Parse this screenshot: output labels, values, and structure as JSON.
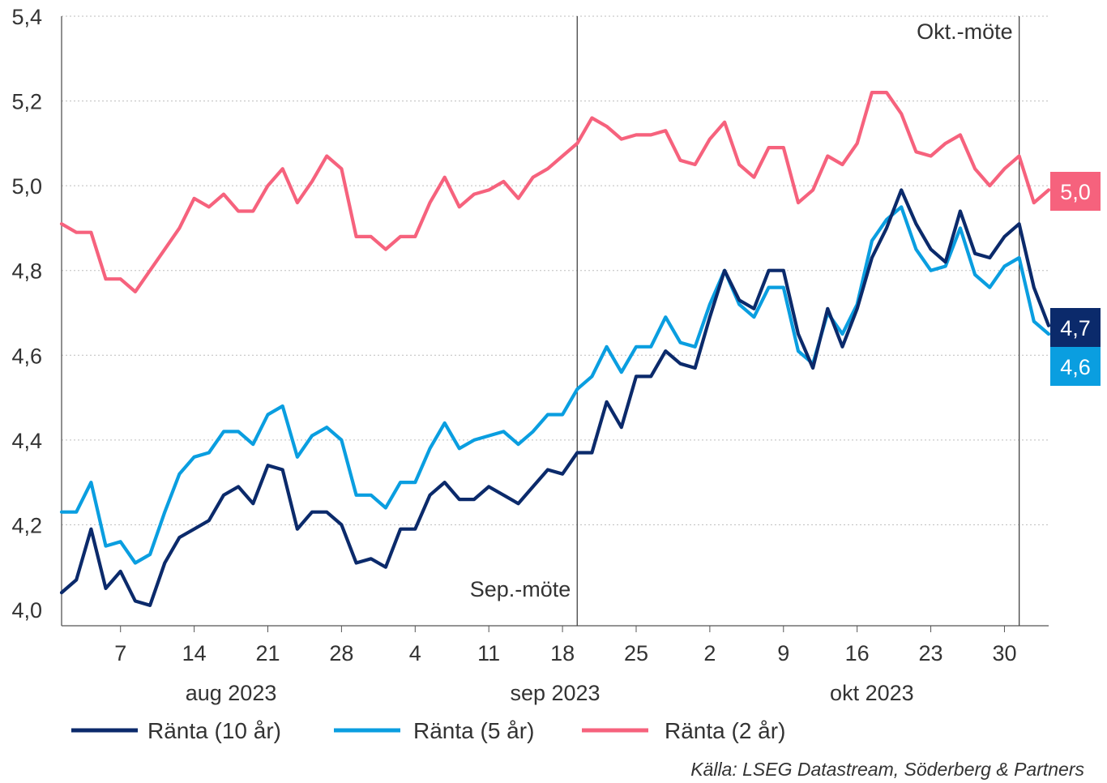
{
  "chart_data": {
    "type": "line",
    "title": "",
    "xlabel": "",
    "ylabel": "",
    "ylim": [
      4.0,
      5.4
    ],
    "y_ticks": [
      "4,0",
      "4,2",
      "4,4",
      "4,6",
      "4,8",
      "5,0",
      "5,2",
      "5,4"
    ],
    "grid": "horizontal-dotted",
    "x_tick_labels": [
      "7",
      "14",
      "21",
      "28",
      "4",
      "11",
      "18",
      "25",
      "2",
      "9",
      "16",
      "23",
      "30"
    ],
    "month_labels": [
      "aug 2023",
      "sep 2023",
      "okt 2023"
    ],
    "annotations": [
      {
        "text": "Sep.-möte",
        "x_index": 35
      },
      {
        "text": "Okt.-möte",
        "x_index": 65
      }
    ],
    "series": [
      {
        "name": "Ränta (10 år)",
        "color": "#0b2a6b",
        "end_label": "4,7",
        "values": [
          4.04,
          4.07,
          4.19,
          4.05,
          4.09,
          4.02,
          4.01,
          4.11,
          4.17,
          4.19,
          4.21,
          4.27,
          4.29,
          4.25,
          4.34,
          4.33,
          4.19,
          4.23,
          4.23,
          4.2,
          4.11,
          4.12,
          4.1,
          4.19,
          4.19,
          4.27,
          4.3,
          4.26,
          4.26,
          4.29,
          4.27,
          4.25,
          4.29,
          4.33,
          4.32,
          4.37,
          4.37,
          4.49,
          4.43,
          4.55,
          4.55,
          4.61,
          4.58,
          4.57,
          4.69,
          4.8,
          4.73,
          4.71,
          4.8,
          4.8,
          4.65,
          4.57,
          4.71,
          4.62,
          4.71,
          4.83,
          4.9,
          4.99,
          4.91,
          4.85,
          4.82,
          4.94,
          4.84,
          4.83,
          4.88,
          4.91,
          4.76,
          4.67
        ]
      },
      {
        "name": "Ränta (5 år)",
        "color": "#0a9ee0",
        "end_label": "4,6",
        "values": [
          4.23,
          4.23,
          4.3,
          4.15,
          4.16,
          4.11,
          4.13,
          4.23,
          4.32,
          4.36,
          4.37,
          4.42,
          4.42,
          4.39,
          4.46,
          4.48,
          4.36,
          4.41,
          4.43,
          4.4,
          4.27,
          4.27,
          4.24,
          4.3,
          4.3,
          4.38,
          4.44,
          4.38,
          4.4,
          4.41,
          4.42,
          4.39,
          4.42,
          4.46,
          4.46,
          4.52,
          4.55,
          4.62,
          4.56,
          4.62,
          4.62,
          4.69,
          4.63,
          4.62,
          4.72,
          4.8,
          4.72,
          4.69,
          4.76,
          4.76,
          4.61,
          4.58,
          4.7,
          4.65,
          4.72,
          4.87,
          4.92,
          4.95,
          4.85,
          4.8,
          4.81,
          4.9,
          4.79,
          4.76,
          4.81,
          4.83,
          4.68,
          4.65
        ]
      },
      {
        "name": "Ränta (2 år)",
        "color": "#f6627d",
        "end_label": "5,0",
        "values": [
          4.91,
          4.89,
          4.89,
          4.78,
          4.78,
          4.75,
          4.8,
          4.85,
          4.9,
          4.97,
          4.95,
          4.98,
          4.94,
          4.94,
          5.0,
          5.04,
          4.96,
          5.01,
          5.07,
          5.04,
          4.88,
          4.88,
          4.85,
          4.88,
          4.88,
          4.96,
          5.02,
          4.95,
          4.98,
          4.99,
          5.01,
          4.97,
          5.02,
          5.04,
          5.07,
          5.1,
          5.16,
          5.14,
          5.11,
          5.12,
          5.12,
          5.13,
          5.06,
          5.05,
          5.11,
          5.15,
          5.05,
          5.02,
          5.09,
          5.09,
          4.96,
          4.99,
          5.07,
          5.05,
          5.1,
          5.22,
          5.22,
          5.17,
          5.08,
          5.07,
          5.1,
          5.12,
          5.04,
          5.0,
          5.04,
          5.07,
          4.96,
          4.99
        ]
      }
    ],
    "source": "Källa: LSEG Datastream, Söderberg & Partners"
  }
}
